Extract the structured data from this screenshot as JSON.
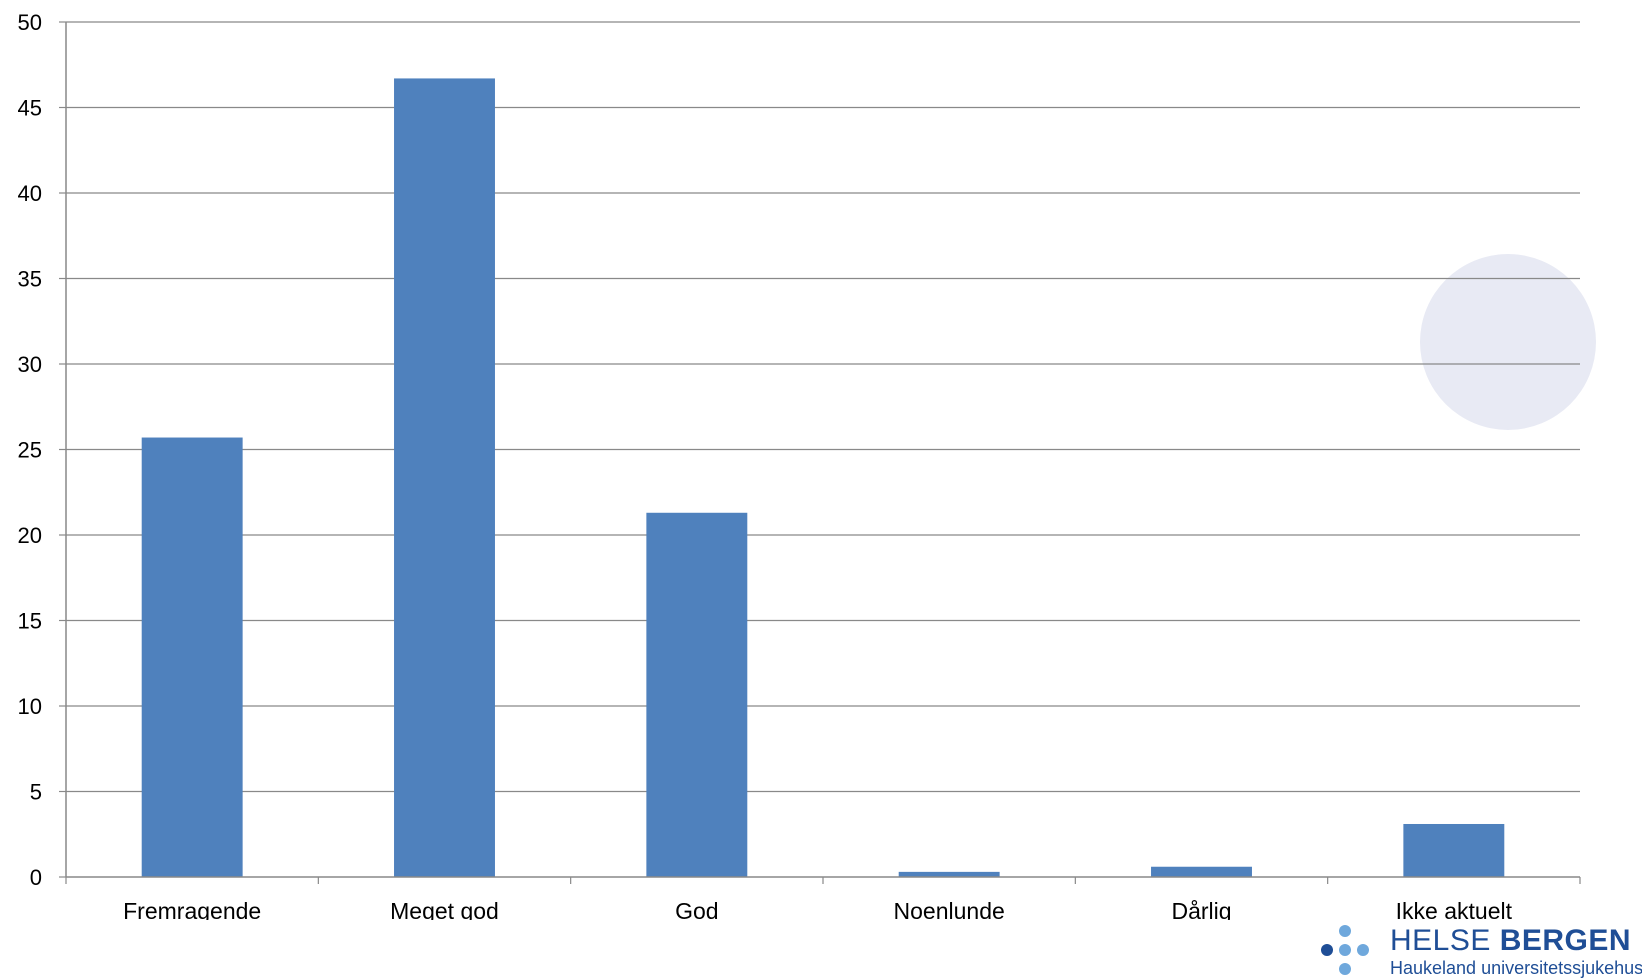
{
  "chart_data": {
    "type": "bar",
    "title": "",
    "xlabel": "",
    "ylabel": "",
    "categories": [
      "Fremragende",
      "Meget god",
      "God",
      "Noenlunde",
      "Dårlig",
      "Ikke aktuelt"
    ],
    "values": [
      25.7,
      46.7,
      21.3,
      0.3,
      0.6,
      3.1
    ],
    "ylim": [
      0,
      50
    ],
    "yticks": [
      0,
      5,
      10,
      15,
      20,
      25,
      30,
      35,
      40,
      45,
      50
    ],
    "grid": true,
    "legend": "none",
    "bar_color": "#4f81bd",
    "grid_color": "#898989"
  },
  "logo": {
    "name_light": "HELSE ",
    "name_bold": "BERGEN",
    "subtitle": "Haukeland universitetssjukehus",
    "color": "#1f4e96",
    "dot_color": "#6fa8dc"
  }
}
